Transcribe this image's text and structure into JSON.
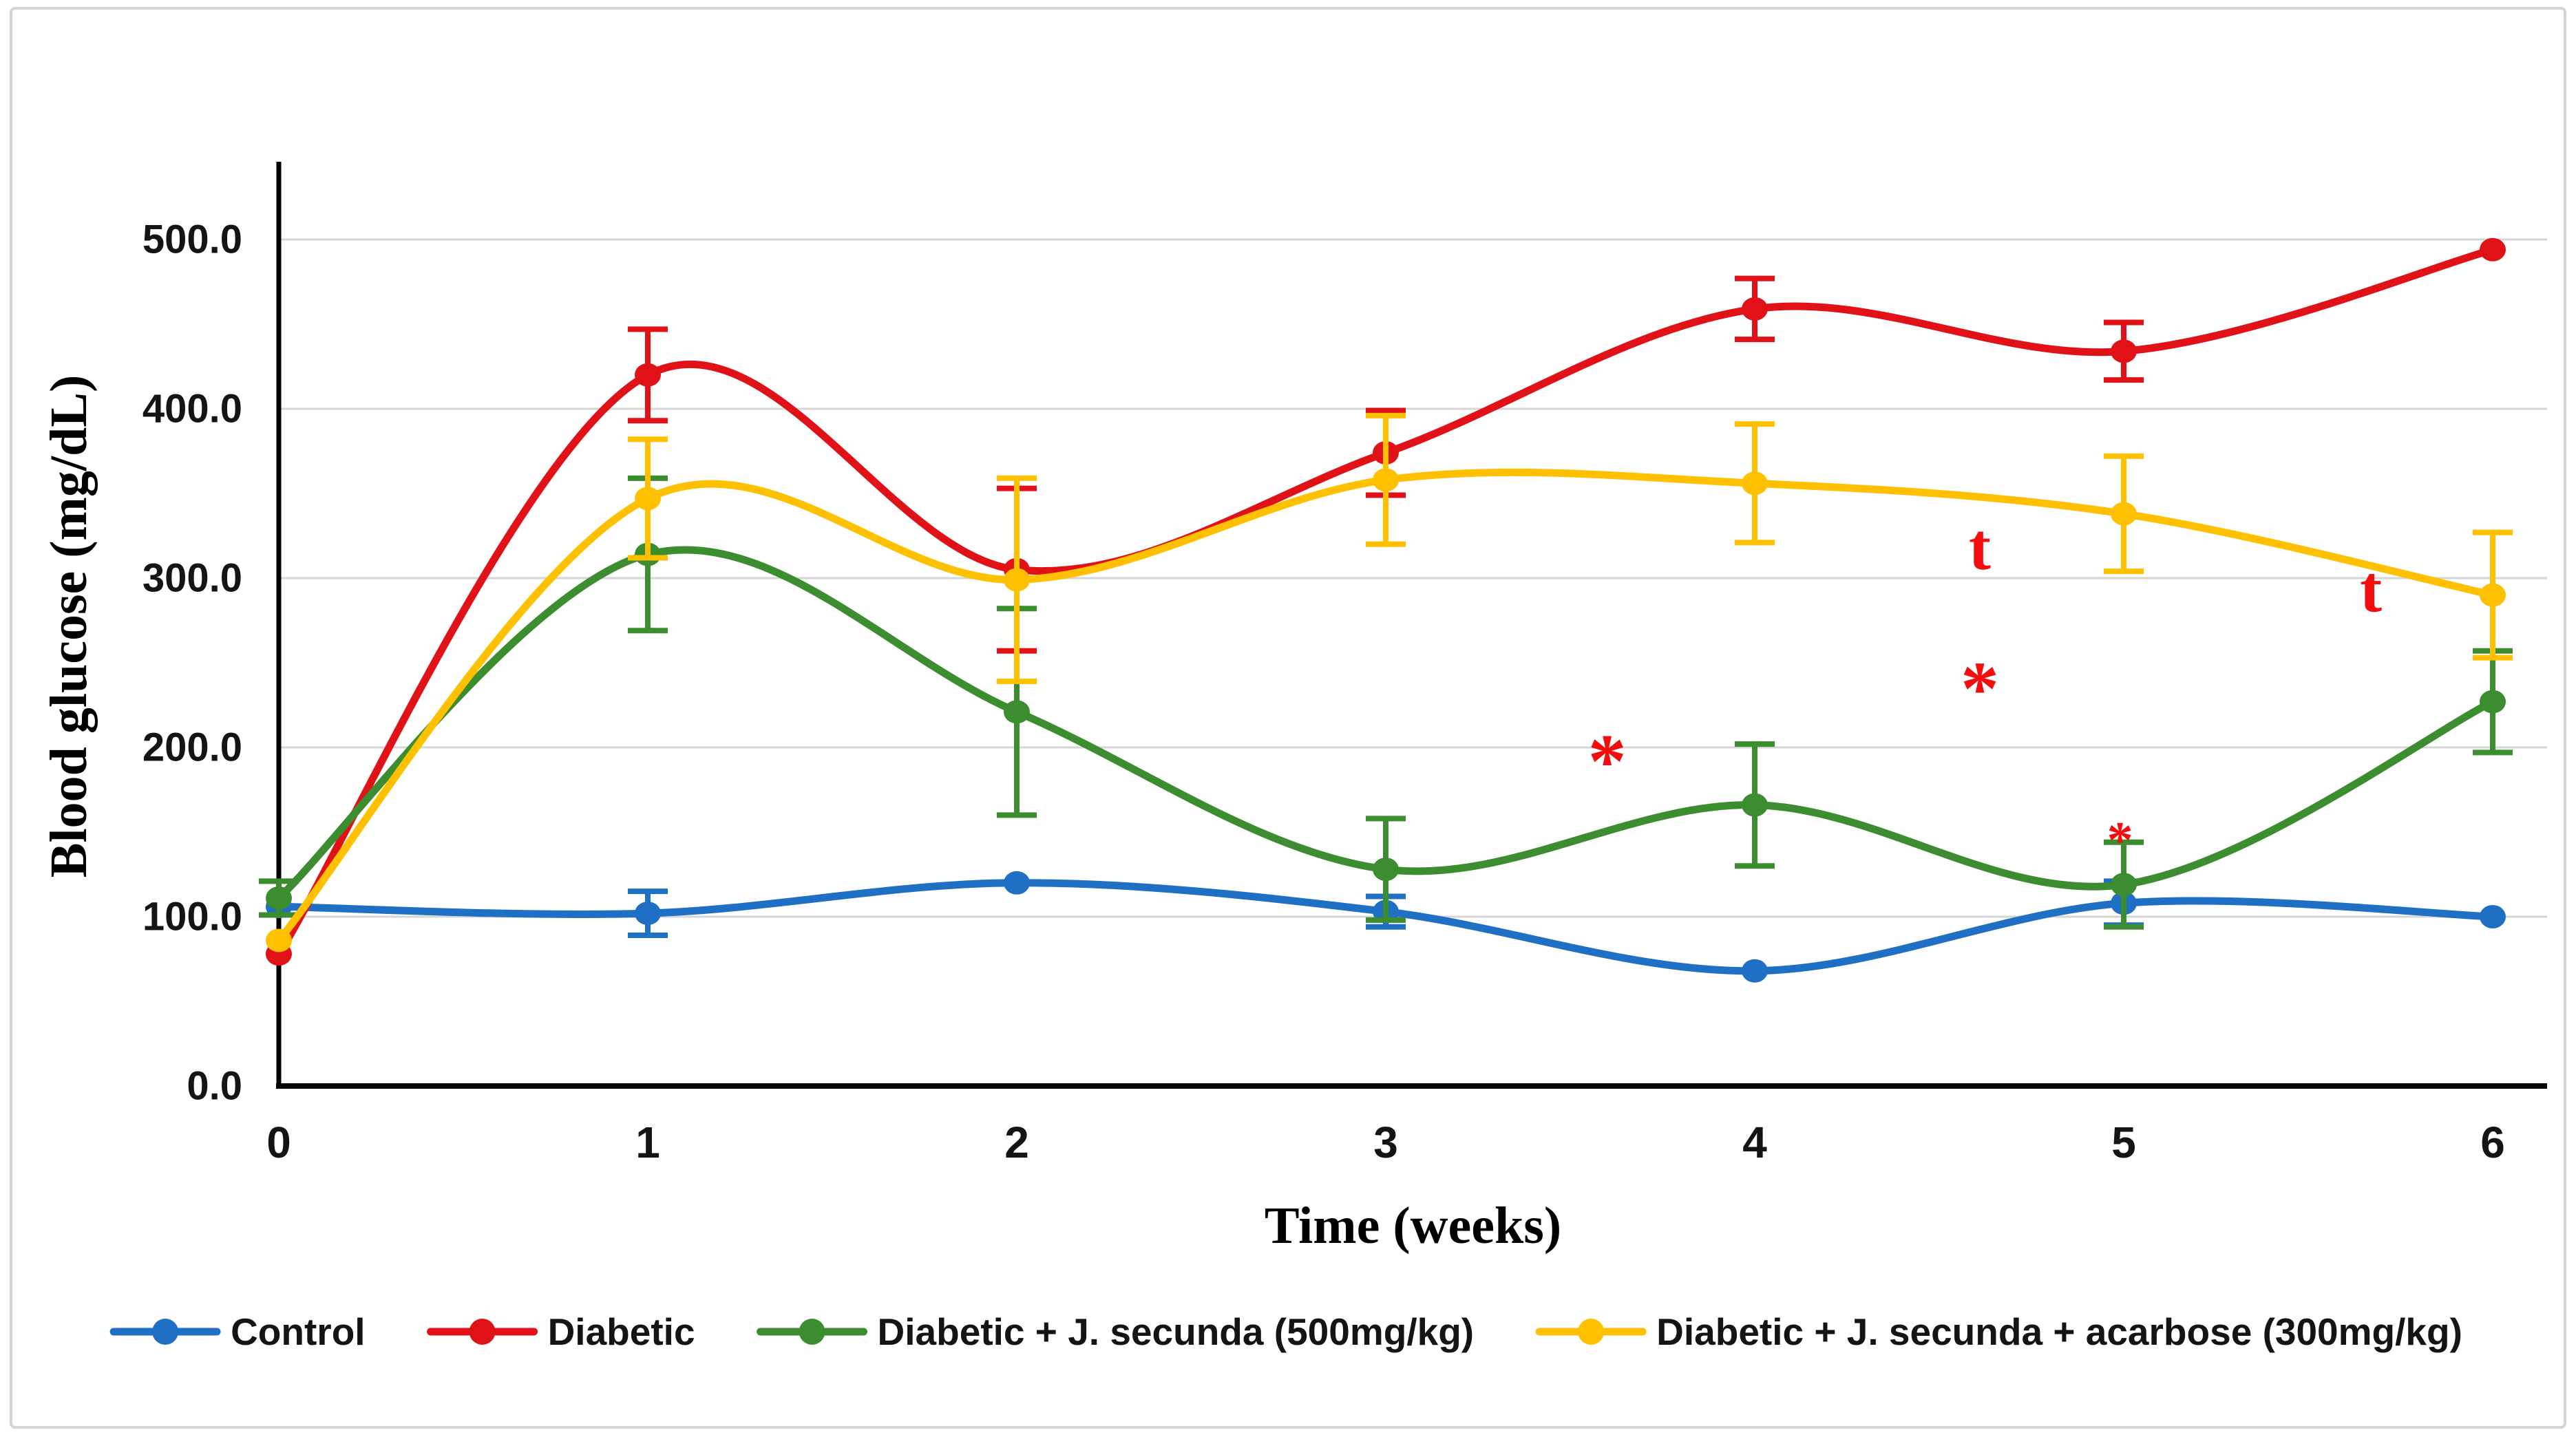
{
  "figure": {
    "border_color": "#d4d4d4",
    "background": "#ffffff"
  },
  "chart_data": {
    "type": "line",
    "title": "",
    "xlabel": "Time (weeks)",
    "ylabel": "Blood glucose (mg/dL)",
    "x": [
      0,
      1,
      2,
      3,
      4,
      5,
      6
    ],
    "x_tick_labels": [
      "0",
      "1",
      "2",
      "3",
      "4",
      "5",
      "6"
    ],
    "y_ticks": [
      0,
      100,
      200,
      300,
      400,
      500
    ],
    "y_tick_labels": [
      "0.0",
      "100.0",
      "200.0",
      "300.0",
      "400.0",
      "500.0"
    ],
    "ylim": [
      0,
      545
    ],
    "grid": "horizontal",
    "gridline_color": "#d6d6d6",
    "axis_color": "#000000",
    "legend_position": "bottom-center",
    "marker": "circle",
    "line_style": "smooth",
    "series": [
      {
        "name": "Control",
        "color": "#1f6fc4",
        "values": [
          106,
          102,
          120,
          103,
          68,
          108,
          100
        ],
        "errors": [
          0,
          13,
          0,
          9,
          0,
          13,
          0
        ]
      },
      {
        "name": "Diabetic",
        "color": "#e01217",
        "values": [
          78,
          420,
          305,
          374,
          459,
          434,
          494
        ],
        "errors": [
          0,
          27,
          48,
          25,
          18,
          17,
          0
        ]
      },
      {
        "name": "Diabetic + J. secunda (500mg/kg)",
        "color": "#3c8d2f",
        "values": [
          111,
          314,
          221,
          128,
          166,
          119,
          227
        ],
        "errors": [
          10,
          45,
          61,
          30,
          36,
          25,
          30
        ]
      },
      {
        "name": "Diabetic + J. secunda + acarbose (300mg/kg)",
        "color": "#ffc000",
        "values": [
          86,
          347,
          299,
          358,
          356,
          338,
          290
        ],
        "errors": [
          0,
          35,
          60,
          38,
          35,
          34,
          37
        ]
      }
    ],
    "annotations": [
      {
        "text": "*",
        "week": 3.6,
        "value": 200,
        "size": "large"
      },
      {
        "text": "t",
        "week": 4.61,
        "value": 319,
        "size": "large"
      },
      {
        "text": "*",
        "week": 4.61,
        "value": 243,
        "size": "large"
      },
      {
        "text": "*",
        "week": 4.99,
        "value": 151,
        "size": "small"
      },
      {
        "text": "t",
        "week": 5.67,
        "value": 294,
        "size": "large"
      }
    ],
    "annotation_color": "#f50d0d"
  }
}
